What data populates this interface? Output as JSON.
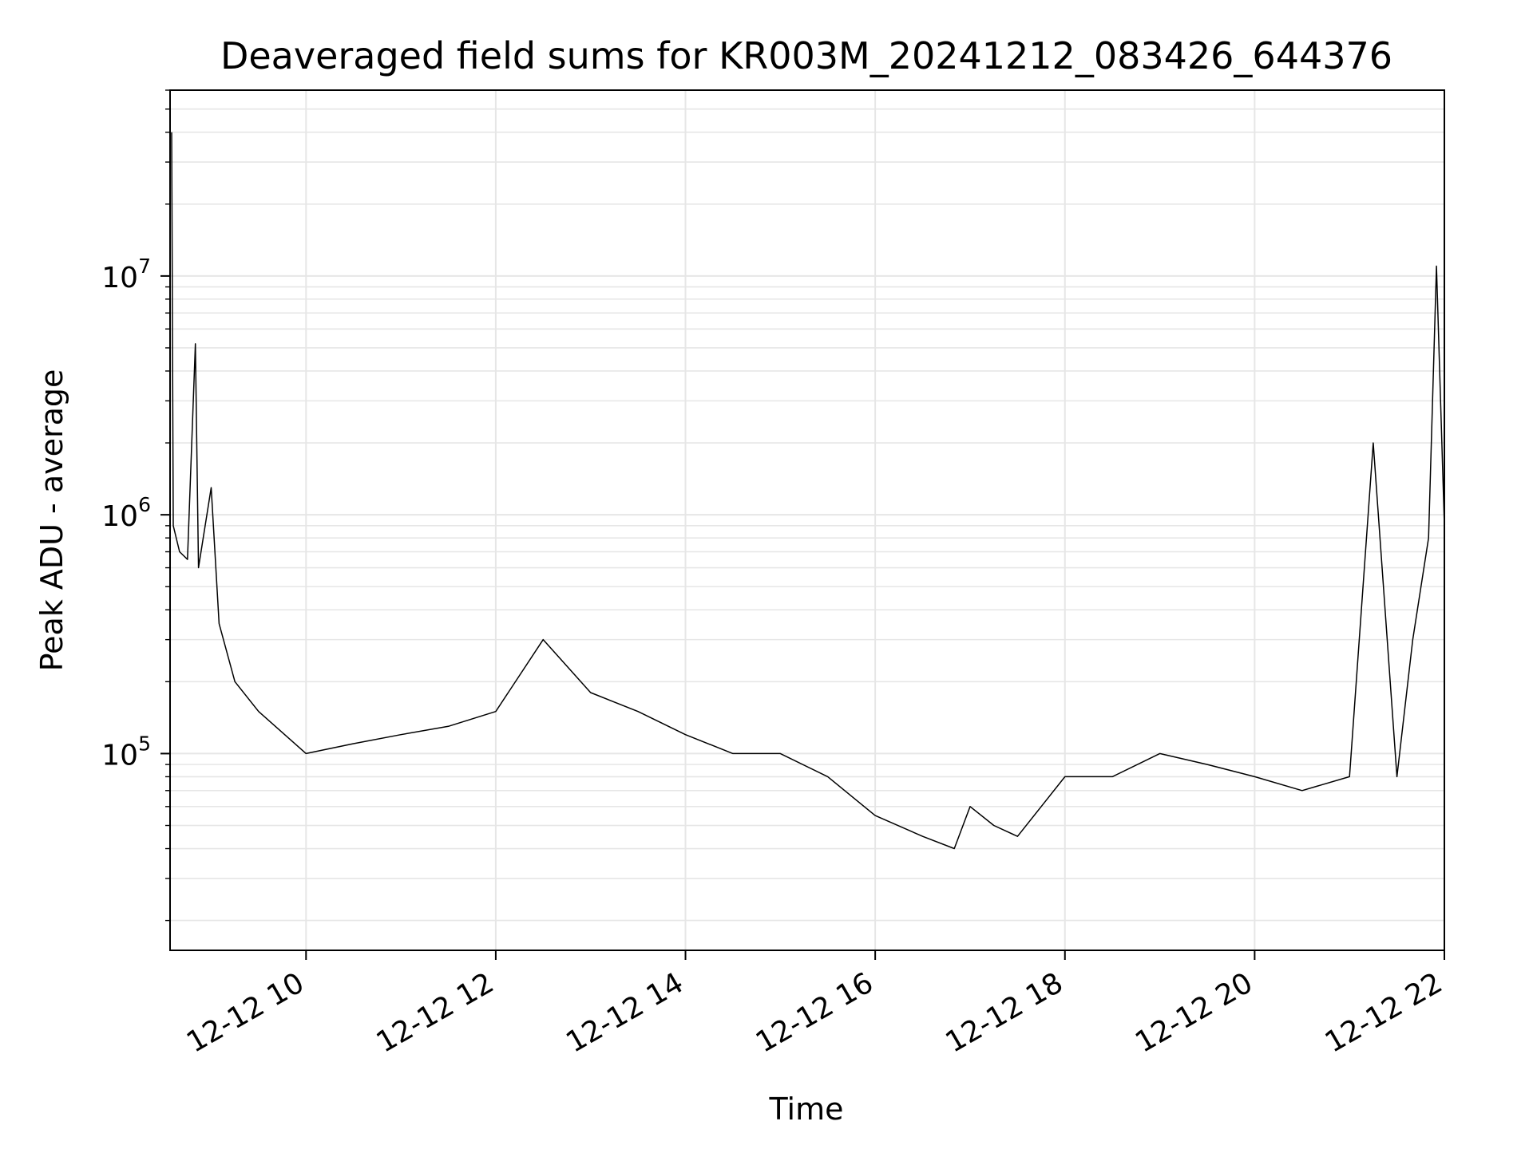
{
  "chart_data": {
    "type": "line",
    "title": "Deaveraged field sums for KR003M_20241212_083426_644376",
    "xlabel": "Time",
    "ylabel": "Peak ADU - average",
    "yscale": "log",
    "ylim": [
      15000,
      60000000
    ],
    "xlim": [
      "2024-12-12 08:34",
      "2024-12-12 22:00"
    ],
    "grid": true,
    "line_color": "#000000",
    "grid_color": "#e6e6e6",
    "x_ticks": [
      {
        "value": "2024-12-12 10:00",
        "label": "12-12 10"
      },
      {
        "value": "2024-12-12 12:00",
        "label": "12-12 12"
      },
      {
        "value": "2024-12-12 14:00",
        "label": "12-12 14"
      },
      {
        "value": "2024-12-12 16:00",
        "label": "12-12 16"
      },
      {
        "value": "2024-12-12 18:00",
        "label": "12-12 18"
      },
      {
        "value": "2024-12-12 20:00",
        "label": "12-12 20"
      },
      {
        "value": "2024-12-12 22:00",
        "label": "12-12 22"
      }
    ],
    "y_ticks": [
      {
        "value": 100000,
        "base": "10",
        "exp": "5"
      },
      {
        "value": 1000000,
        "base": "10",
        "exp": "6"
      },
      {
        "value": 10000000,
        "base": "10",
        "exp": "7"
      }
    ],
    "series": [
      {
        "values": [
          [
            "2024-12-12 08:35",
            40000000
          ],
          [
            "2024-12-12 08:36",
            900000
          ],
          [
            "2024-12-12 08:40",
            700000
          ],
          [
            "2024-12-12 08:45",
            650000
          ],
          [
            "2024-12-12 08:50",
            5200000
          ],
          [
            "2024-12-12 08:52",
            600000
          ],
          [
            "2024-12-12 09:00",
            1300000
          ],
          [
            "2024-12-12 09:05",
            350000
          ],
          [
            "2024-12-12 09:15",
            200000
          ],
          [
            "2024-12-12 09:30",
            150000
          ],
          [
            "2024-12-12 10:00",
            100000
          ],
          [
            "2024-12-12 10:30",
            110000
          ],
          [
            "2024-12-12 11:00",
            120000
          ],
          [
            "2024-12-12 11:30",
            130000
          ],
          [
            "2024-12-12 12:00",
            150000
          ],
          [
            "2024-12-12 12:30",
            300000
          ],
          [
            "2024-12-12 13:00",
            180000
          ],
          [
            "2024-12-12 13:30",
            150000
          ],
          [
            "2024-12-12 14:00",
            120000
          ],
          [
            "2024-12-12 14:30",
            100000
          ],
          [
            "2024-12-12 15:00",
            100000
          ],
          [
            "2024-12-12 15:30",
            80000
          ],
          [
            "2024-12-12 16:00",
            55000
          ],
          [
            "2024-12-12 16:30",
            45000
          ],
          [
            "2024-12-12 16:50",
            40000
          ],
          [
            "2024-12-12 17:00",
            60000
          ],
          [
            "2024-12-12 17:15",
            50000
          ],
          [
            "2024-12-12 17:30",
            45000
          ],
          [
            "2024-12-12 17:45",
            60000
          ],
          [
            "2024-12-12 18:00",
            80000
          ],
          [
            "2024-12-12 18:30",
            80000
          ],
          [
            "2024-12-12 19:00",
            100000
          ],
          [
            "2024-12-12 19:30",
            90000
          ],
          [
            "2024-12-12 20:00",
            80000
          ],
          [
            "2024-12-12 20:30",
            70000
          ],
          [
            "2024-12-12 21:00",
            80000
          ],
          [
            "2024-12-12 21:15",
            2000000
          ],
          [
            "2024-12-12 21:30",
            80000
          ],
          [
            "2024-12-12 21:40",
            300000
          ],
          [
            "2024-12-12 21:50",
            800000
          ],
          [
            "2024-12-12 21:55",
            11000000
          ],
          [
            "2024-12-12 22:00",
            900000
          ]
        ]
      }
    ]
  }
}
